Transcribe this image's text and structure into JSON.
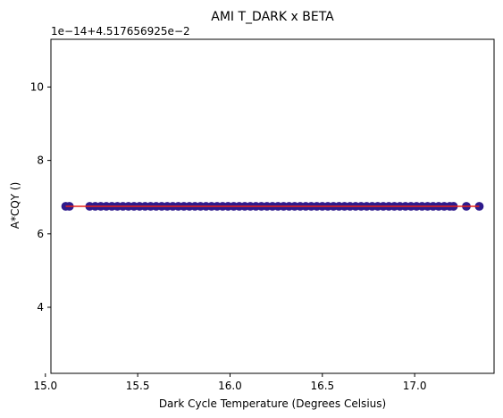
{
  "chart_data": {
    "type": "scatter",
    "title": "AMI T_DARK x BETA",
    "xlabel": "Dark Cycle Temperature (Degrees Celsius)",
    "ylabel": "A*CQY ()",
    "offset_text": "1e−14+4.517656925e−2",
    "xlim": [
      15.03,
      17.43
    ],
    "ylim": [
      2.2,
      11.3
    ],
    "xticks": [
      15.0,
      15.5,
      16.0,
      16.5,
      17.0
    ],
    "xtick_labels": [
      "15.0",
      "15.5",
      "16.0",
      "16.5",
      "17.0"
    ],
    "yticks": [
      4,
      6,
      8,
      10
    ],
    "ytick_labels": [
      "4",
      "6",
      "8",
      "10"
    ],
    "grid": false,
    "series": [
      {
        "kind": "points",
        "color": "#2e1a8c",
        "y": 6.75,
        "x": [
          15.11,
          15.13,
          15.24,
          15.27,
          15.3,
          15.33,
          15.36,
          15.39,
          15.42,
          15.45,
          15.48,
          15.51,
          15.54,
          15.57,
          15.6,
          15.63,
          15.66,
          15.69,
          15.72,
          15.75,
          15.78,
          15.81,
          15.84,
          15.87,
          15.9,
          15.93,
          15.96,
          15.99,
          16.02,
          16.05,
          16.08,
          16.11,
          16.14,
          16.17,
          16.2,
          16.23,
          16.26,
          16.29,
          16.32,
          16.35,
          16.38,
          16.41,
          16.44,
          16.47,
          16.5,
          16.53,
          16.56,
          16.59,
          16.62,
          16.65,
          16.68,
          16.71,
          16.74,
          16.77,
          16.8,
          16.83,
          16.86,
          16.89,
          16.92,
          16.95,
          16.98,
          17.01,
          17.04,
          17.07,
          17.1,
          17.13,
          17.16,
          17.19,
          17.21,
          17.28,
          17.35
        ]
      },
      {
        "kind": "fit-line",
        "color": "#e8211a",
        "x": [
          15.11,
          17.35
        ],
        "y": [
          6.75,
          6.75
        ]
      }
    ]
  }
}
